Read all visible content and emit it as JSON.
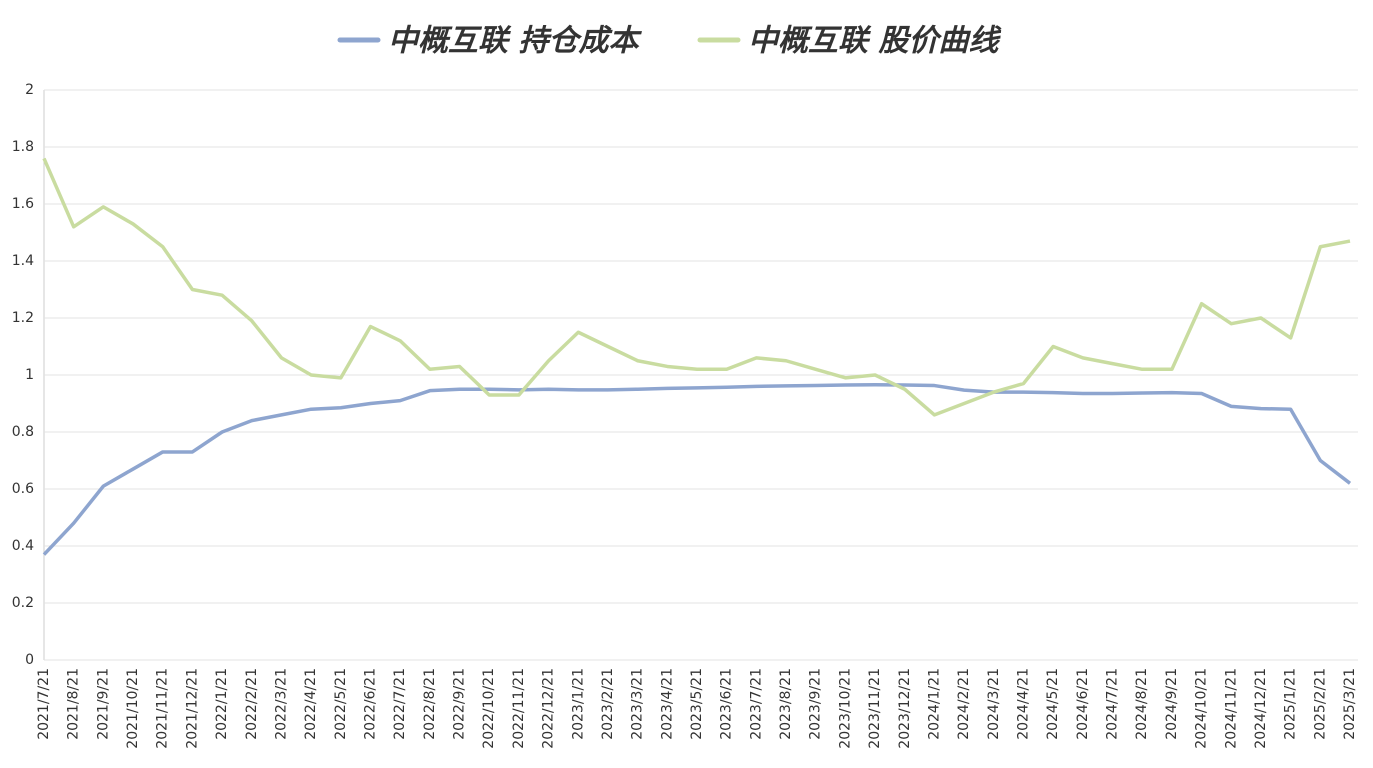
{
  "chart_data": {
    "type": "line",
    "categories": [
      "2021/7/21",
      "2021/8/21",
      "2021/9/21",
      "2021/10/21",
      "2021/11/21",
      "2021/12/21",
      "2022/1/21",
      "2022/2/21",
      "2022/3/21",
      "2022/4/21",
      "2022/5/21",
      "2022/6/21",
      "2022/7/21",
      "2022/8/21",
      "2022/9/21",
      "2022/10/21",
      "2022/11/21",
      "2022/12/21",
      "2023/1/21",
      "2023/2/21",
      "2023/3/21",
      "2023/4/21",
      "2023/5/21",
      "2023/6/21",
      "2023/7/21",
      "2023/8/21",
      "2023/9/21",
      "2023/10/21",
      "2023/11/21",
      "2023/12/21",
      "2024/1/21",
      "2024/2/21",
      "2024/3/21",
      "2024/4/21",
      "2024/5/21",
      "2024/6/21",
      "2024/7/21",
      "2024/8/21",
      "2024/9/21",
      "2024/10/21",
      "2024/11/21",
      "2024/12/21",
      "2025/1/21",
      "2025/2/21",
      "2025/3/21"
    ],
    "series": [
      {
        "name": "中概互联 持仓成本",
        "color": "#8ea5cf",
        "values": [
          0.37,
          0.48,
          0.61,
          0.67,
          0.73,
          0.73,
          0.8,
          0.84,
          0.86,
          0.88,
          0.885,
          0.9,
          0.91,
          0.945,
          0.95,
          0.95,
          0.948,
          0.95,
          0.948,
          0.948,
          0.95,
          0.953,
          0.955,
          0.957,
          0.96,
          0.962,
          0.963,
          0.965,
          0.966,
          0.965,
          0.963,
          0.947,
          0.94,
          0.94,
          0.938,
          0.935,
          0.935,
          0.937,
          0.938,
          0.935,
          0.89,
          0.882,
          0.88,
          0.7,
          0.62
        ]
      },
      {
        "name": "中概互联 股价曲线",
        "color": "#c9dca0",
        "values": [
          1.76,
          1.52,
          1.59,
          1.53,
          1.45,
          1.3,
          1.28,
          1.19,
          1.06,
          1.0,
          0.99,
          1.17,
          1.12,
          1.02,
          1.03,
          0.93,
          0.93,
          1.05,
          1.15,
          1.1,
          1.05,
          1.03,
          1.02,
          1.02,
          1.06,
          1.05,
          1.02,
          0.99,
          1.0,
          0.95,
          0.86,
          0.9,
          0.94,
          0.97,
          1.1,
          1.06,
          1.04,
          1.02,
          1.02,
          1.25,
          1.18,
          1.2,
          1.13,
          1.45,
          1.47
        ]
      }
    ],
    "ylim": [
      0,
      2
    ],
    "yticks": [
      0,
      0.2,
      0.4,
      0.6,
      0.8,
      1,
      1.2,
      1.4,
      1.6,
      1.8,
      2
    ],
    "grid": true
  }
}
